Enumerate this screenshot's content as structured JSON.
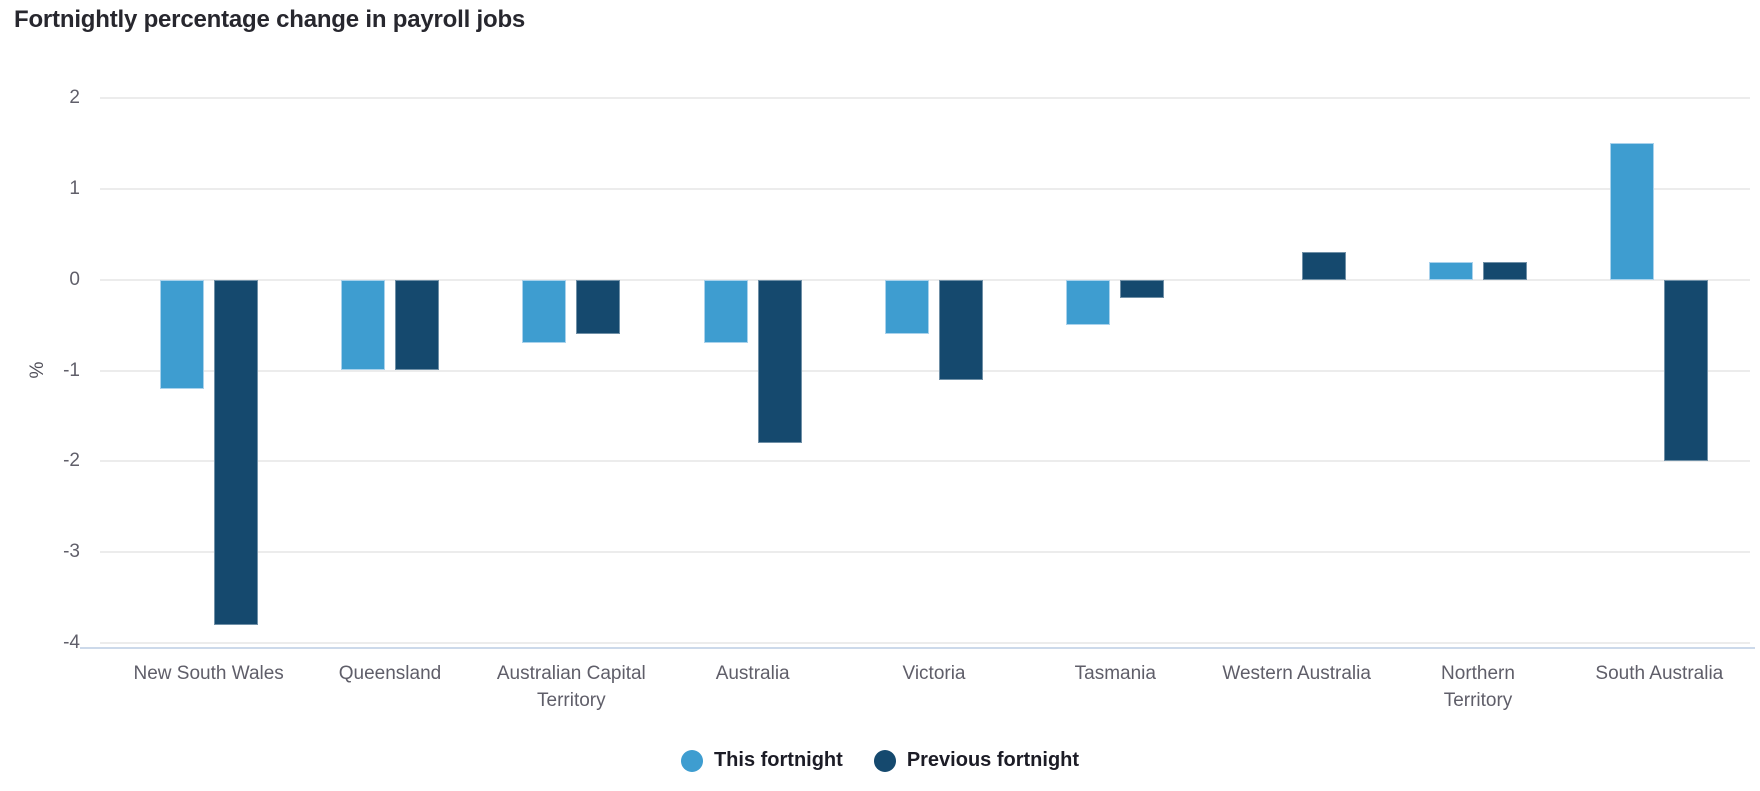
{
  "chart_title": "Fortnightly percentage change in payroll jobs",
  "chart_data": {
    "type": "bar",
    "title": "Fortnightly percentage change in payroll jobs",
    "xlabel": "",
    "ylabel": "%",
    "ylim": [
      -4,
      2
    ],
    "yticks": [
      2,
      1,
      0,
      -1,
      -2,
      -3,
      -4
    ],
    "grid": true,
    "legend_position": "bottom",
    "categories": [
      "New South Wales",
      "Queensland",
      "Australian Capital Territory",
      "Australia",
      "Victoria",
      "Tasmania",
      "Western Australia",
      "Northern Territory",
      "South Australia"
    ],
    "categories_display": [
      "New South Wales",
      "Queensland",
      "Australian Capital\nTerritory",
      "Australia",
      "Victoria",
      "Tasmania",
      "Western Australia",
      "Northern\nTerritory",
      "South Australia"
    ],
    "series": [
      {
        "name": "This fortnight",
        "color": "#3E9DD0",
        "values": [
          -1.2,
          -1.0,
          -0.7,
          -0.7,
          -0.6,
          -0.5,
          0.0,
          0.2,
          1.5
        ]
      },
      {
        "name": "Previous fortnight",
        "color": "#15496E",
        "values": [
          -3.8,
          -1.0,
          -0.6,
          -1.8,
          -1.1,
          -0.2,
          0.3,
          0.2,
          -2.0
        ]
      }
    ]
  },
  "colors": {
    "this_fortnight": "#3E9DD0",
    "previous_fortnight": "#15496E",
    "gridline": "#ececec",
    "axis_baseline": "#ccd9ea",
    "tick_text": "#605f6a",
    "title_text": "#27272e"
  }
}
